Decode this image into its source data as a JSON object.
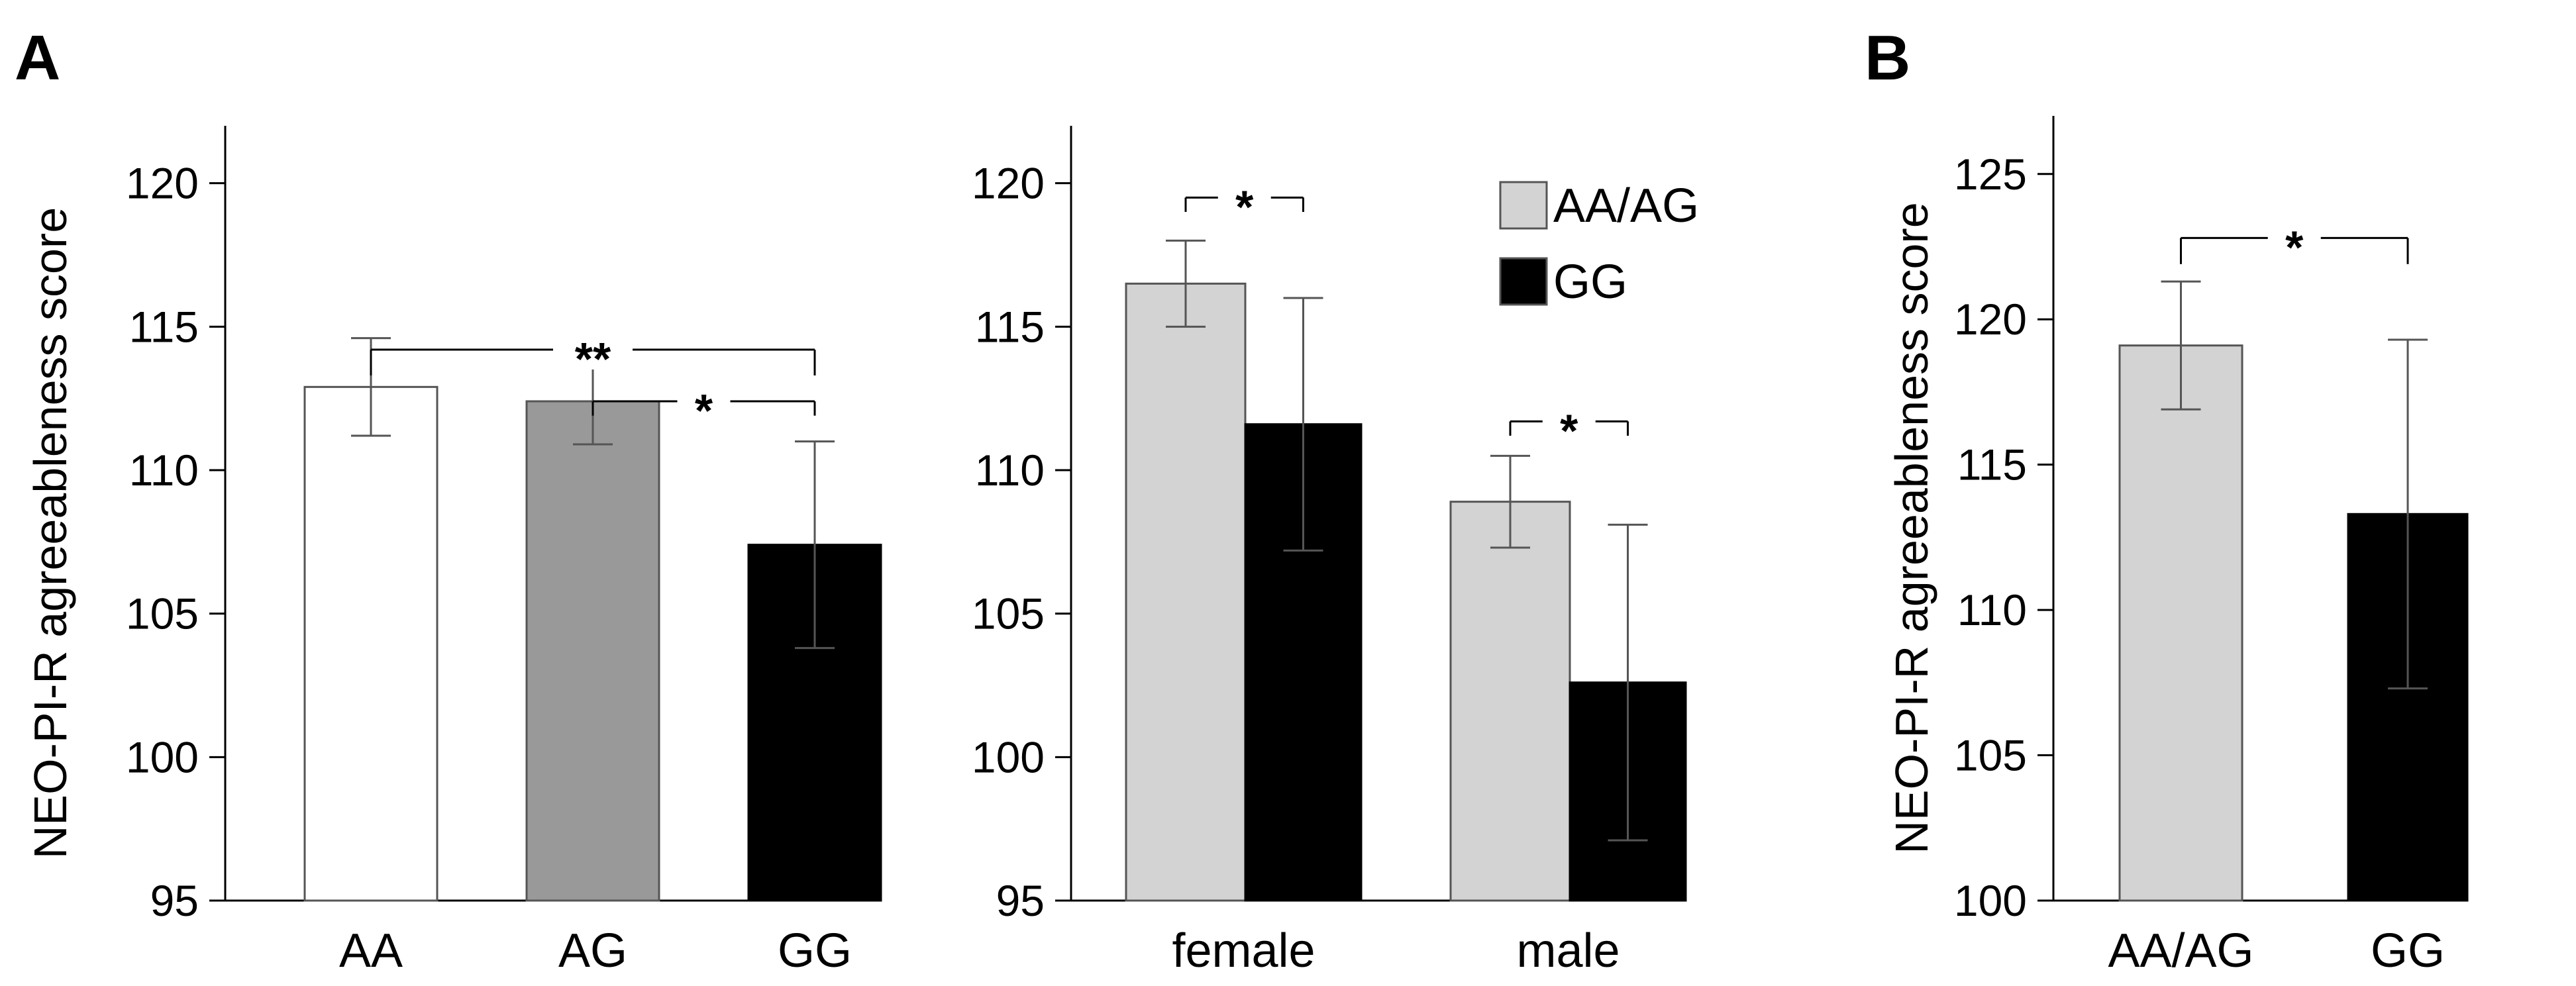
{
  "figure": {
    "panel_letters": [
      "A",
      "B"
    ]
  },
  "chart_data": [
    {
      "type": "bar",
      "panel": "A",
      "title": "",
      "xlabel": "",
      "ylabel": "NEO-PI-R agreeableness score",
      "ylim": [
        95,
        122
      ],
      "yticks": [
        95,
        100,
        105,
        110,
        115,
        120
      ],
      "grid": false,
      "categories": [
        "AA",
        "AG",
        "GG"
      ],
      "values": [
        112.9,
        112.4,
        107.4
      ],
      "errors": [
        1.7,
        1.5,
        3.6
      ],
      "colors": [
        "#ffffff",
        "#999999",
        "#000000"
      ],
      "significance": [
        {
          "from": 0,
          "to": 2,
          "label": "**",
          "level": 114.2,
          "drop": 0.9
        },
        {
          "from": 1,
          "to": 2,
          "label": "*",
          "level": 112.4,
          "drop": 0.5
        }
      ]
    },
    {
      "type": "bar",
      "panel": "A",
      "title": "",
      "xlabel": "",
      "ylabel": "",
      "ylim": [
        95,
        122
      ],
      "yticks": [
        95,
        100,
        105,
        110,
        115,
        120
      ],
      "grid": false,
      "categories": [
        "female",
        "male"
      ],
      "series": [
        {
          "name": "AA/AG",
          "color": "#d3d3d3",
          "values": [
            116.5,
            108.9
          ],
          "errors": [
            1.5,
            1.6
          ]
        },
        {
          "name": "GG",
          "color": "#000000",
          "values": [
            111.6,
            102.6
          ],
          "errors": [
            4.4,
            5.5
          ]
        }
      ],
      "legend": "top-right",
      "significance": [
        {
          "category": 0,
          "label": "*",
          "level": 119.5,
          "drop": 0.5
        },
        {
          "category": 1,
          "label": "*",
          "level": 111.7,
          "drop": 0.5
        }
      ]
    },
    {
      "type": "bar",
      "panel": "B",
      "title": "",
      "xlabel": "",
      "ylabel": "NEO-PI-R agreeableness score",
      "ylim": [
        100,
        127
      ],
      "yticks": [
        100,
        105,
        110,
        115,
        120,
        125
      ],
      "grid": false,
      "categories": [
        "AA/AG",
        "GG"
      ],
      "values": [
        119.1,
        113.3
      ],
      "errors": [
        2.2,
        6.0
      ],
      "colors": [
        "#d3d3d3",
        "#000000"
      ],
      "significance": [
        {
          "from": 0,
          "to": 1,
          "label": "*",
          "level": 122.8,
          "drop": 0.9
        }
      ]
    }
  ]
}
